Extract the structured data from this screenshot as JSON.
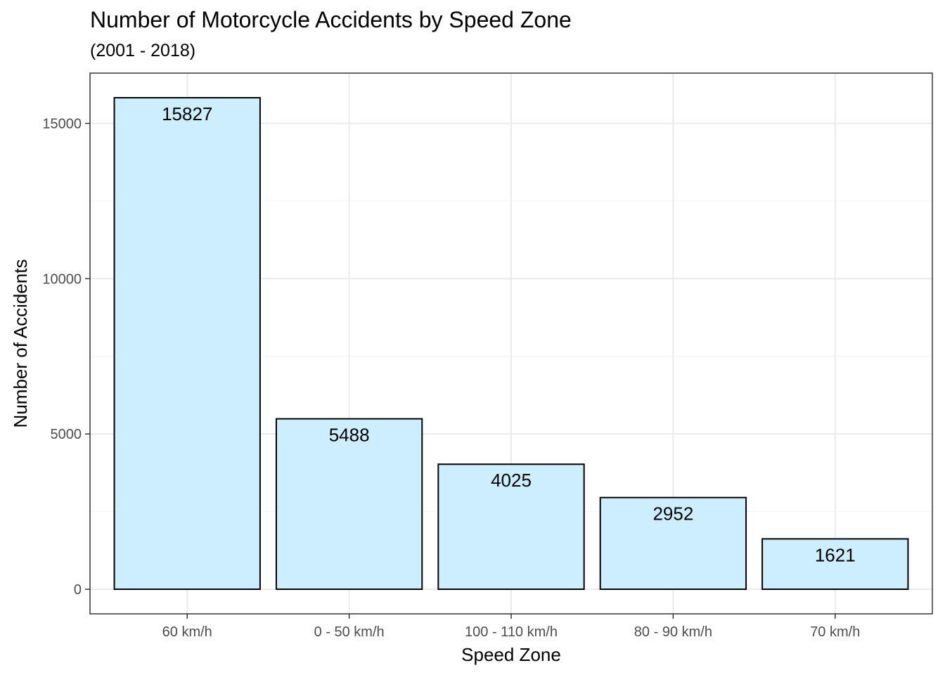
{
  "chart_data": {
    "type": "bar",
    "title": "Number of Motorcycle Accidents by Speed Zone",
    "subtitle": "(2001 - 2018)",
    "xlabel": "Speed Zone",
    "ylabel": "Number of Accidents",
    "categories": [
      "60 km/h",
      "0 - 50 km/h",
      "100 - 110 km/h",
      "80 - 90 km/h",
      "70 km/h"
    ],
    "values": [
      15827,
      5488,
      4025,
      2952,
      1621
    ],
    "data_labels": [
      "15827",
      "5488",
      "4025",
      "2952",
      "1621"
    ],
    "y_ticks": [
      0,
      5000,
      10000,
      15000
    ],
    "y_tick_labels": [
      "0",
      "5000",
      "10000",
      "15000"
    ],
    "ylim": [
      -792,
      16619
    ],
    "grid": true,
    "legend": "none",
    "colors": {
      "bar_fill": "#CCEEFF",
      "bar_stroke": "#000000",
      "grid_major": "#EBEBEB",
      "grid_minor": "#F4F4F4",
      "panel_border": "#333333",
      "tick_text": "#4D4D4D"
    }
  }
}
